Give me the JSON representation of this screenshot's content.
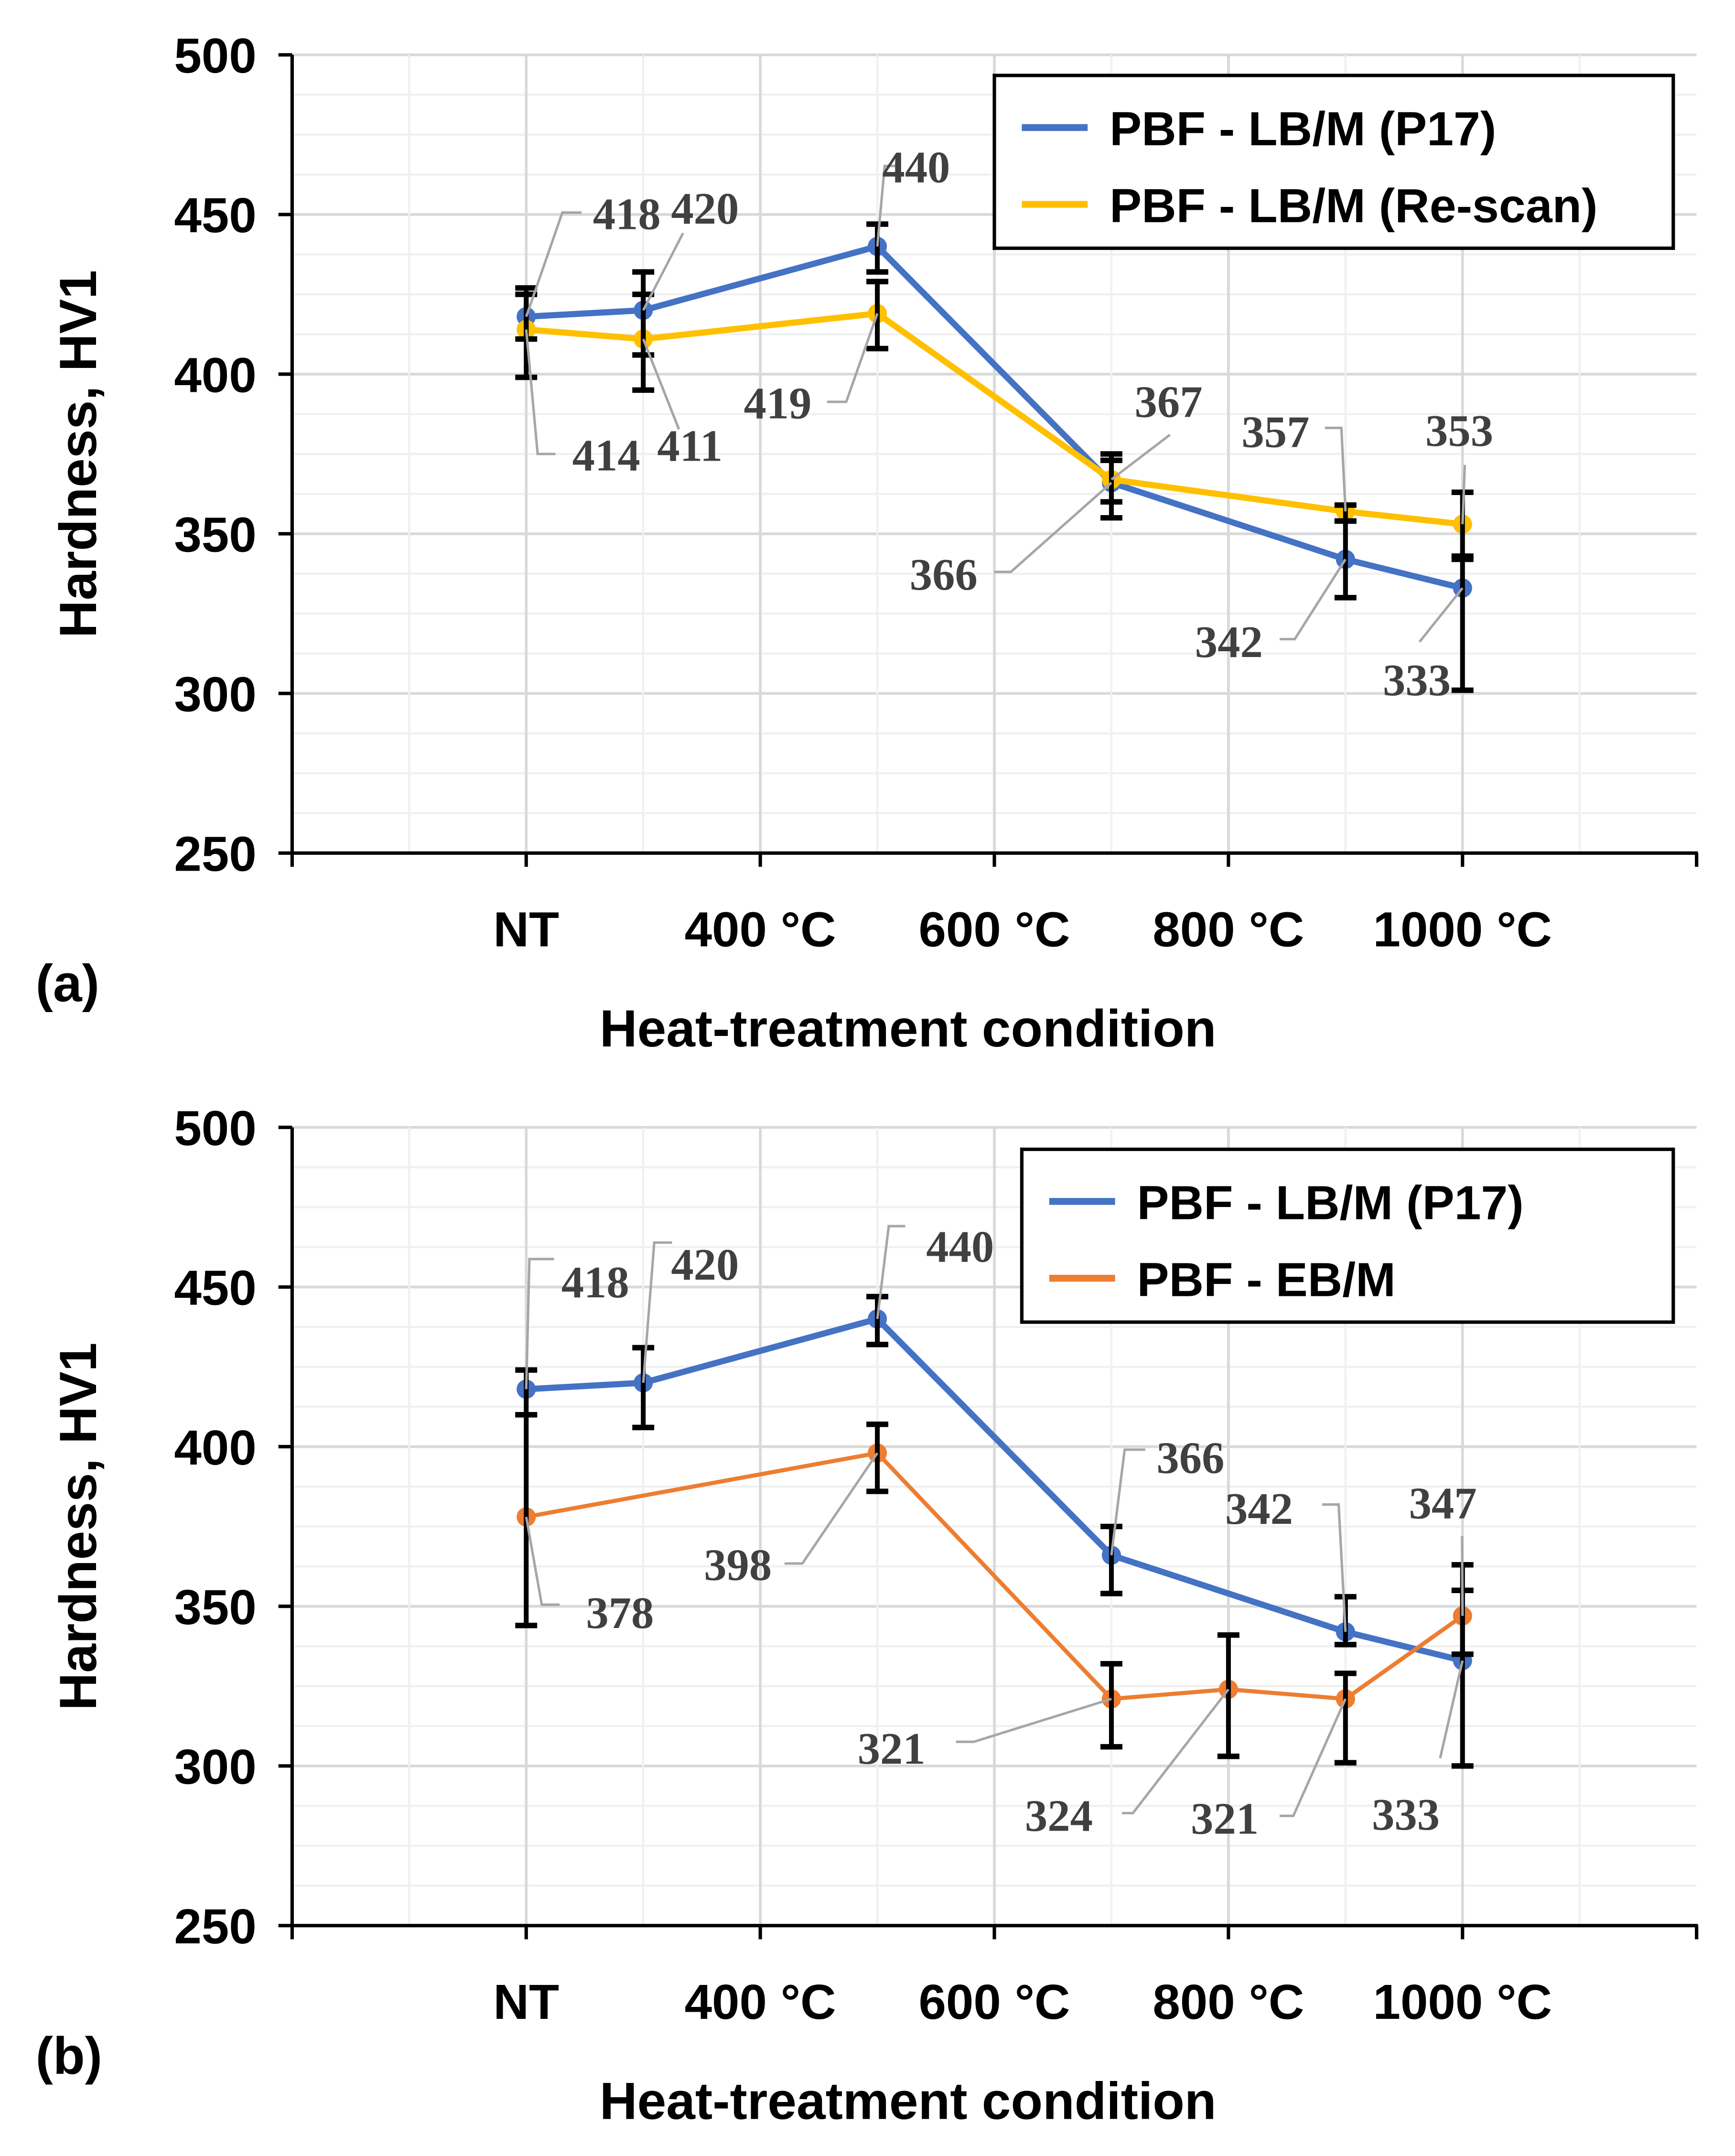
{
  "chart_data": [
    {
      "type": "line",
      "panel_label": "(a)",
      "xlabel": "Heat-treatment condition",
      "ylabel": "Hardness, HV1",
      "ylim": [
        250,
        500
      ],
      "yticks": [
        "250",
        "300",
        "350",
        "400",
        "450",
        "500"
      ],
      "xtick_labels": [
        "NT",
        "400 °C",
        "600 °C",
        "800 °C",
        "1000 °C"
      ],
      "xtick_values": [
        200,
        400,
        600,
        800,
        1000
      ],
      "grid": true,
      "legend_position": "top-right",
      "series": [
        {
          "name": "PBF - LB/M (P17)",
          "color": "#4472c4",
          "x": [
            200,
            300,
            500,
            700,
            900,
            1000
          ],
          "values": [
            418,
            420,
            440,
            366,
            342,
            333
          ],
          "err_low": [
            411,
            406,
            432,
            355,
            330,
            301
          ],
          "err_high": [
            425,
            432,
            447,
            375,
            354,
            342
          ],
          "labels": [
            "418",
            "420",
            "440",
            "366",
            "342",
            "333"
          ]
        },
        {
          "name": "PBF - LB/M (Re-scan)",
          "color": "#ffc000",
          "x": [
            200,
            300,
            500,
            700,
            900,
            1000
          ],
          "values": [
            414,
            411,
            419,
            367,
            357,
            353
          ],
          "err_low": [
            399,
            395,
            408,
            360,
            354,
            343
          ],
          "err_high": [
            427,
            425,
            429,
            373,
            359,
            363
          ],
          "labels": [
            "414",
            "411",
            "419",
            "367",
            "357",
            "353"
          ]
        }
      ]
    },
    {
      "type": "line",
      "panel_label": "(b)",
      "xlabel": "Heat-treatment condition",
      "ylabel": "Hardness, HV1",
      "ylim": [
        250,
        500
      ],
      "yticks": [
        "250",
        "300",
        "350",
        "400",
        "450",
        "500"
      ],
      "xtick_labels": [
        "NT",
        "400 °C",
        "600 °C",
        "800 °C",
        "1000 °C"
      ],
      "xtick_values": [
        200,
        400,
        600,
        800,
        1000
      ],
      "grid": true,
      "legend_position": "top-right",
      "series": [
        {
          "name": "PBF - LB/M (P17)",
          "color": "#4472c4",
          "x": [
            200,
            300,
            500,
            700,
            900,
            1000
          ],
          "values": [
            418,
            420,
            440,
            366,
            342,
            333
          ],
          "err_low": [
            410,
            406,
            432,
            354,
            338,
            300
          ],
          "err_high": [
            424,
            431,
            447,
            375,
            353,
            355
          ],
          "labels": [
            "418",
            "420",
            "440",
            "366",
            "342",
            "333"
          ]
        },
        {
          "name": "PBF - EB/M",
          "color": "#ed7d31",
          "x": [
            200,
            500,
            700,
            800,
            900,
            1000
          ],
          "values": [
            378,
            398,
            321,
            324,
            321,
            347
          ],
          "err_low": [
            344,
            386,
            306,
            303,
            301,
            335
          ],
          "err_high": [
            410,
            407,
            332,
            341,
            329,
            363
          ],
          "labels": [
            "378",
            "398",
            "321",
            "324",
            "321",
            "347"
          ]
        }
      ]
    }
  ]
}
